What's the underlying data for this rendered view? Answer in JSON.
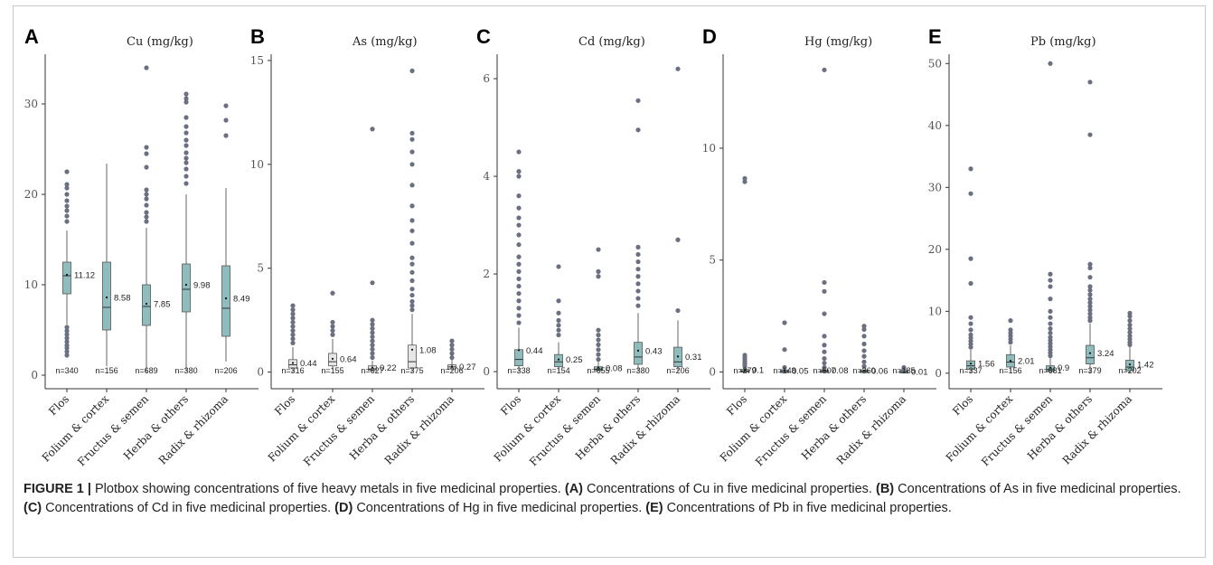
{
  "figure": {
    "caption_label": "FIGURE 1 |",
    "caption_intro": "Plotbox showing concentrations of five heavy metals in five medicinal properties.",
    "caption_parts": [
      {
        "ref": "(A)",
        "text": "Concentrations of Cu in five medicinal properties."
      },
      {
        "ref": "(B)",
        "text": "Concentrations of As in five medicinal properties."
      },
      {
        "ref": "(C)",
        "text": "Concentrations of Cd in five medicinal properties."
      },
      {
        "ref": "(D)",
        "text": "Concentrations of Hg in five medicinal properties."
      },
      {
        "ref": "(E)",
        "text": "Concentrations of Pb in five medicinal properties."
      }
    ]
  },
  "colors": {
    "teal": "#8fbcbc",
    "grey_box": "#e6e6e6",
    "outlier": "#6a7080",
    "axis": "#333333"
  },
  "chart_data": [
    {
      "type": "box",
      "letter": "A",
      "title": "Cu (mg/kg)",
      "categories": [
        "Flos",
        "Folium & cortex",
        "Fructus & semen",
        "Herba & others",
        "Radix & rhizoma"
      ],
      "yticks": [
        0,
        10,
        20,
        30
      ],
      "ylim": [
        -1.5,
        35.5
      ],
      "boxes": [
        {
          "n": "n=340",
          "median_label": "11.12",
          "color": "teal",
          "q1": 9.0,
          "median": 11.0,
          "q3": 12.5,
          "mean": 11.1,
          "whislo": 5.6,
          "whishi": 16.0,
          "outliers": [
            2.2,
            2.6,
            3.0,
            3.3,
            3.7,
            4.1,
            4.5,
            4.9,
            5.3,
            17.0,
            17.6,
            18.2,
            18.7,
            19.3,
            20.0,
            20.7,
            21.1,
            22.5
          ]
        },
        {
          "n": "n=156",
          "median_label": "8.58",
          "color": "teal",
          "q1": 5.0,
          "median": 7.5,
          "q3": 12.5,
          "mean": 8.6,
          "whislo": 1.0,
          "whishi": 23.4,
          "outliers": []
        },
        {
          "n": "n=689",
          "median_label": "7.85",
          "color": "teal",
          "q1": 5.5,
          "median": 7.6,
          "q3": 10.0,
          "mean": 7.9,
          "whislo": 0.3,
          "whishi": 16.3,
          "outliers": [
            17.0,
            17.5,
            18.0,
            18.8,
            19.5,
            20.0,
            20.5,
            23.0,
            24.5,
            25.2,
            34.0
          ]
        },
        {
          "n": "n=380",
          "median_label": "9.98",
          "color": "teal",
          "q1": 7.0,
          "median": 9.5,
          "q3": 12.3,
          "mean": 10.0,
          "whislo": 0.4,
          "whishi": 20.0,
          "outliers": [
            21.2,
            22.0,
            22.8,
            23.5,
            24.0,
            24.6,
            25.4,
            26.0,
            26.8,
            27.5,
            28.5,
            30.2,
            30.6,
            31.1
          ]
        },
        {
          "n": "n=206",
          "median_label": "8.49",
          "color": "teal",
          "q1": 4.3,
          "median": 7.4,
          "q3": 12.1,
          "mean": 8.5,
          "whislo": 1.5,
          "whishi": 20.7,
          "outliers": [
            26.5,
            28.2,
            29.8
          ]
        }
      ]
    },
    {
      "type": "box",
      "letter": "B",
      "title": "As (mg/kg)",
      "categories": [
        "Flos",
        "Folium & cortex",
        "Fructus & semen",
        "Herba & others",
        "Radix & rhizoma"
      ],
      "yticks": [
        0,
        5,
        10,
        15
      ],
      "ylim": [
        -0.8,
        15.3
      ],
      "boxes": [
        {
          "n": "n=316",
          "median_label": "0.44",
          "color": "grey",
          "q1": 0.2,
          "median": 0.35,
          "q3": 0.6,
          "mean": 0.44,
          "whislo": 0.0,
          "whishi": 1.2,
          "outliers": [
            1.4,
            1.6,
            1.8,
            2.0,
            2.2,
            2.4,
            2.6,
            2.8,
            3.0,
            3.2
          ]
        },
        {
          "n": "n=155",
          "median_label": "0.64",
          "color": "grey",
          "q1": 0.3,
          "median": 0.5,
          "q3": 0.9,
          "mean": 0.64,
          "whislo": 0.1,
          "whishi": 1.6,
          "outliers": [
            1.8,
            2.0,
            2.2,
            2.4,
            3.8
          ]
        },
        {
          "n": "n=627",
          "median_label": "0.22",
          "color": "grey",
          "q1": 0.08,
          "median": 0.15,
          "q3": 0.3,
          "mean": 0.22,
          "whislo": 0.0,
          "whishi": 0.55,
          "outliers": [
            0.7,
            0.9,
            1.1,
            1.3,
            1.5,
            1.7,
            1.9,
            2.1,
            2.3,
            2.5,
            4.3,
            11.7
          ]
        },
        {
          "n": "n=375",
          "median_label": "1.08",
          "color": "grey",
          "q1": 0.2,
          "median": 0.5,
          "q3": 1.3,
          "mean": 1.08,
          "whislo": 0.0,
          "whishi": 2.8,
          "outliers": [
            3.0,
            3.2,
            3.4,
            3.7,
            4.0,
            4.4,
            4.8,
            5.2,
            5.5,
            6.2,
            6.8,
            7.3,
            8.0,
            9.0,
            10.0,
            10.6,
            11.2,
            11.5,
            14.5
          ]
        },
        {
          "n": "n=206",
          "median_label": "0.27",
          "color": "grey",
          "q1": 0.15,
          "median": 0.25,
          "q3": 0.35,
          "mean": 0.27,
          "whislo": 0.05,
          "whishi": 0.6,
          "outliers": [
            0.7,
            0.9,
            1.1,
            1.3,
            1.5
          ]
        }
      ]
    },
    {
      "type": "box",
      "letter": "C",
      "title": "Cd (mg/kg)",
      "categories": [
        "Flos",
        "Folium & cortex",
        "Fructus & semen",
        "Herba & others",
        "Radix & rhizoma"
      ],
      "yticks": [
        0,
        2,
        4,
        6
      ],
      "ylim": [
        -0.35,
        6.5
      ],
      "boxes": [
        {
          "n": "n=338",
          "median_label": "0.44",
          "color": "teal",
          "q1": 0.12,
          "median": 0.25,
          "q3": 0.45,
          "mean": 0.44,
          "whislo": 0.0,
          "whishi": 0.9,
          "outliers": [
            1.0,
            1.15,
            1.3,
            1.45,
            1.6,
            1.75,
            1.9,
            2.05,
            2.2,
            2.35,
            2.6,
            2.8,
            3.0,
            3.15,
            3.35,
            3.6,
            4.0,
            4.1,
            4.5
          ]
        },
        {
          "n": "n=154",
          "median_label": "0.25",
          "color": "teal",
          "q1": 0.1,
          "median": 0.2,
          "q3": 0.35,
          "mean": 0.25,
          "whislo": 0.0,
          "whishi": 0.6,
          "outliers": [
            0.75,
            0.85,
            0.95,
            1.05,
            1.2,
            1.45,
            2.15
          ]
        },
        {
          "n": "n=655",
          "median_label": "0.08",
          "color": "teal",
          "q1": 0.02,
          "median": 0.05,
          "q3": 0.1,
          "mean": 0.08,
          "whislo": 0.0,
          "whishi": 0.2,
          "outliers": [
            0.25,
            0.35,
            0.45,
            0.55,
            0.65,
            0.75,
            0.85,
            1.95,
            2.05,
            2.5
          ]
        },
        {
          "n": "n=380",
          "median_label": "0.43",
          "color": "teal",
          "q1": 0.15,
          "median": 0.3,
          "q3": 0.6,
          "mean": 0.43,
          "whislo": 0.0,
          "whishi": 1.2,
          "outliers": [
            1.35,
            1.5,
            1.65,
            1.8,
            1.95,
            2.1,
            2.25,
            2.4,
            2.55,
            4.95,
            5.55
          ]
        },
        {
          "n": "n=206",
          "median_label": "0.31",
          "color": "teal",
          "q1": 0.1,
          "median": 0.2,
          "q3": 0.5,
          "mean": 0.31,
          "whislo": 0.0,
          "whishi": 1.05,
          "outliers": [
            1.25,
            2.7,
            6.2
          ]
        }
      ]
    },
    {
      "type": "box",
      "letter": "D",
      "title": "Hg (mg/kg)",
      "categories": [
        "Flos",
        "Folium & cortex",
        "Fructus & semen",
        "Herba & others",
        "Radix & rhizoma"
      ],
      "yticks": [
        0,
        5,
        10
      ],
      "ylim": [
        -0.75,
        14.2
      ],
      "boxes": [
        {
          "n": "n=279",
          "median_label": "0.1",
          "color": "teal",
          "q1": 0.02,
          "median": 0.04,
          "q3": 0.08,
          "mean": 0.1,
          "whislo": 0.0,
          "whishi": 0.15,
          "outliers": [
            0.25,
            0.35,
            0.45,
            0.55,
            0.65,
            0.75,
            8.5,
            8.65
          ]
        },
        {
          "n": "n=148",
          "median_label": "0.05",
          "color": "teal",
          "q1": 0.01,
          "median": 0.03,
          "q3": 0.05,
          "mean": 0.05,
          "whislo": 0.0,
          "whishi": 0.1,
          "outliers": [
            0.2,
            1.0,
            2.2
          ]
        },
        {
          "n": "n=507",
          "median_label": "0.08",
          "color": "teal",
          "q1": 0.01,
          "median": 0.03,
          "q3": 0.06,
          "mean": 0.08,
          "whislo": 0.0,
          "whishi": 0.12,
          "outliers": [
            0.2,
            0.4,
            0.6,
            0.9,
            1.2,
            1.6,
            2.6,
            3.6,
            4.0,
            13.5
          ]
        },
        {
          "n": "n=360",
          "median_label": "0.06",
          "color": "teal",
          "q1": 0.01,
          "median": 0.03,
          "q3": 0.05,
          "mean": 0.06,
          "whislo": 0.0,
          "whishi": 0.1,
          "outliers": [
            0.25,
            0.45,
            0.7,
            0.95,
            1.25,
            1.6,
            1.9,
            2.05
          ]
        },
        {
          "n": "n=185",
          "median_label": "0.01",
          "color": "teal",
          "q1": 0.0,
          "median": 0.01,
          "q3": 0.02,
          "mean": 0.01,
          "whislo": 0.0,
          "whishi": 0.04,
          "outliers": [
            0.1,
            0.2
          ]
        }
      ]
    },
    {
      "type": "box",
      "letter": "E",
      "title": "Pb (mg/kg)",
      "categories": [
        "Flos",
        "Folium & cortex",
        "Fructus & semen",
        "Herba & others",
        "Radix & rhizoma"
      ],
      "yticks": [
        0,
        10,
        20,
        30,
        40,
        50
      ],
      "ylim": [
        -2.5,
        51.5
      ],
      "boxes": [
        {
          "n": "n=337",
          "median_label": "1.56",
          "color": "teal",
          "q1": 0.6,
          "median": 1.2,
          "q3": 2.0,
          "mean": 1.56,
          "whislo": 0.0,
          "whishi": 3.8,
          "outliers": [
            4.2,
            4.7,
            5.2,
            5.7,
            6.2,
            7.0,
            8.0,
            9.0,
            14.5,
            18.5,
            29.0,
            33.0
          ]
        },
        {
          "n": "n=156",
          "median_label": "2.01",
          "color": "teal",
          "q1": 1.0,
          "median": 1.8,
          "q3": 3.0,
          "mean": 2.01,
          "whislo": 0.2,
          "whishi": 4.5,
          "outliers": [
            5.0,
            5.5,
            6.0,
            6.5,
            7.0,
            8.5
          ]
        },
        {
          "n": "n=681",
          "median_label": "0.9",
          "color": "teal",
          "q1": 0.3,
          "median": 0.6,
          "q3": 1.2,
          "mean": 0.9,
          "whislo": 0.0,
          "whishi": 2.4,
          "outliers": [
            2.8,
            3.3,
            3.8,
            4.3,
            4.8,
            5.3,
            5.8,
            6.5,
            7.2,
            8.0,
            9.0,
            10.0,
            12.0,
            14.0,
            15.0,
            16.0,
            50.0
          ]
        },
        {
          "n": "n=379",
          "median_label": "3.24",
          "color": "teal",
          "q1": 1.5,
          "median": 2.5,
          "q3": 4.5,
          "mean": 3.24,
          "whislo": 0.0,
          "whishi": 8.0,
          "outliers": [
            8.5,
            9.0,
            9.6,
            10.2,
            10.8,
            11.4,
            12.0,
            12.7,
            13.4,
            14.0,
            15.5,
            17.0,
            17.6,
            38.5,
            47.0
          ]
        },
        {
          "n": "n=202",
          "median_label": "1.42",
          "color": "teal",
          "q1": 0.4,
          "median": 1.0,
          "q3": 2.1,
          "mean": 1.42,
          "whislo": 0.0,
          "whishi": 4.2,
          "outliers": [
            4.6,
            5.0,
            5.5,
            6.0,
            6.6,
            7.2,
            7.8,
            8.5,
            9.2,
            9.7
          ]
        }
      ]
    }
  ]
}
